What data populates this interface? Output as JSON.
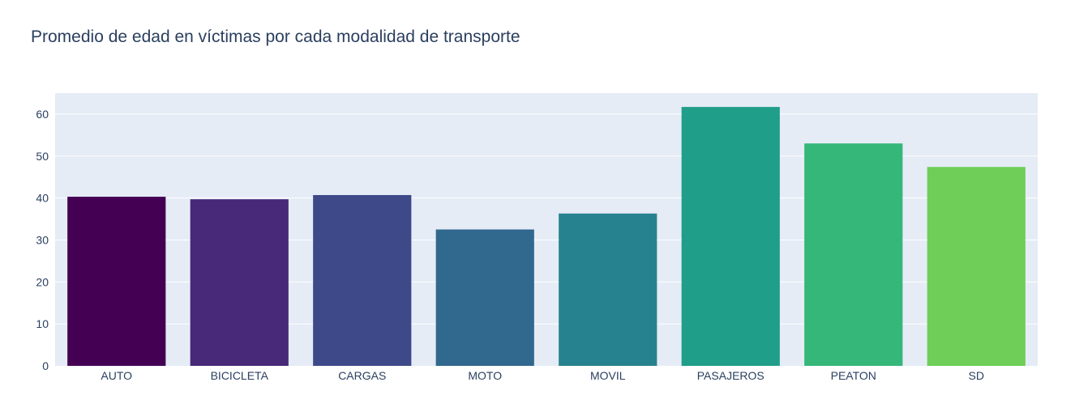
{
  "chart_data": {
    "type": "bar",
    "title": "Promedio de edad en víctimas por cada modalidad de transporte",
    "xlabel": "",
    "ylabel": "",
    "categories": [
      "AUTO",
      "BICICLETA",
      "CARGAS",
      "MOTO",
      "MOVIL",
      "PASAJEROS",
      "PEATON",
      "SD"
    ],
    "values": [
      40.3,
      39.7,
      40.7,
      32.5,
      36.3,
      61.7,
      53.0,
      47.4
    ],
    "ylim": [
      0,
      65
    ],
    "yticks": [
      0,
      10,
      20,
      30,
      40,
      50,
      60
    ],
    "grid": true,
    "legend": "none",
    "colors": [
      "#440154",
      "#482878",
      "#3e4989",
      "#31688e",
      "#26828e",
      "#1f9e89",
      "#35b779",
      "#6ece58"
    ],
    "plot_background": "#e5ecf6"
  }
}
